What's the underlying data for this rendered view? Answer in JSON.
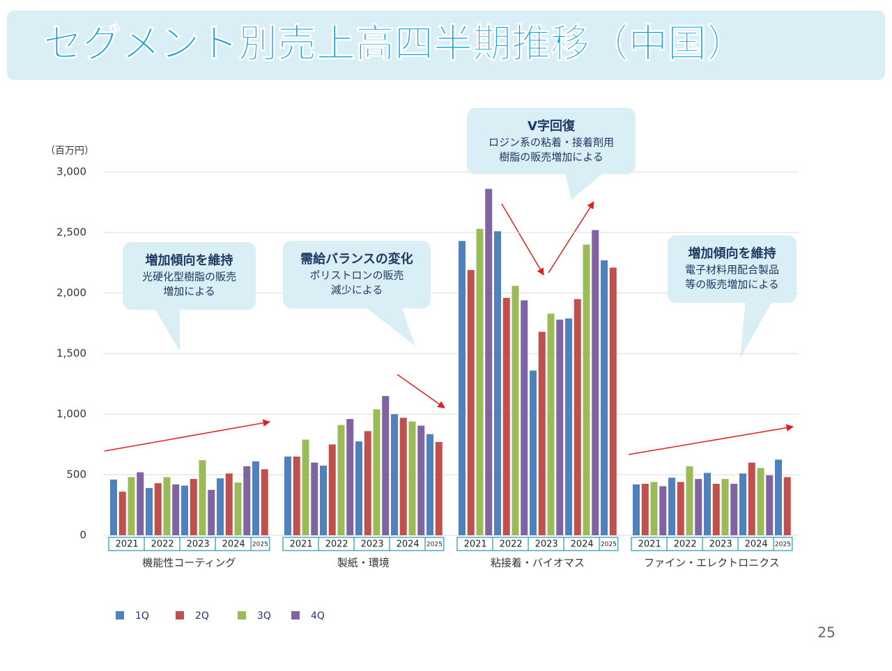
{
  "chart_data": {
    "type": "bar",
    "title": "セグメント別売上高四半期推移（中国）",
    "y_unit": "（百万円）",
    "ylim": [
      0,
      3000
    ],
    "yticks": [
      0,
      500,
      {
        "value": 1000,
        "label": "1,000"
      },
      {
        "value": 1500,
        "label": "1,500"
      },
      {
        "value": 2000,
        "label": "2,000"
      },
      {
        "value": 2500,
        "label": "2,500"
      },
      {
        "value": 3000,
        "label": "3,000"
      }
    ],
    "grid": true,
    "legend": [
      {
        "name": "1Q",
        "color": "#4f81bd"
      },
      {
        "name": "2Q",
        "color": "#c0504d"
      },
      {
        "name": "3Q",
        "color": "#9bbb59"
      },
      {
        "name": "4Q",
        "color": "#8064a2"
      }
    ],
    "years": [
      "2021",
      "2022",
      "2023",
      "2024",
      "2025"
    ],
    "groups": [
      {
        "name": "機能性コーティング",
        "values": [
          460,
          360,
          480,
          520,
          390,
          430,
          480,
          420,
          410,
          465,
          620,
          375,
          470,
          510,
          435,
          570,
          610,
          545
        ]
      },
      {
        "name": "製紙・環境",
        "values": [
          650,
          650,
          790,
          600,
          575,
          750,
          910,
          960,
          775,
          860,
          1040,
          1150,
          1000,
          970,
          940,
          905,
          835,
          770
        ]
      },
      {
        "name": "粘接着・バイオマス",
        "values": [
          2430,
          2190,
          2530,
          2860,
          2510,
          1960,
          2060,
          1940,
          1360,
          1680,
          1830,
          1780,
          1790,
          1950,
          2400,
          2520,
          2270,
          2210
        ]
      },
      {
        "name": "ファイン・エレクトロニクス",
        "values": [
          420,
          425,
          440,
          405,
          475,
          440,
          570,
          465,
          515,
          425,
          465,
          425,
          510,
          600,
          555,
          495,
          625,
          480
        ]
      }
    ],
    "annotations": [
      {
        "title": "増加傾向を維持",
        "lines": [
          "光硬化型樹脂の販売",
          "増加による"
        ]
      },
      {
        "title": "需給バランスの変化",
        "lines": [
          "ポリストロンの販売",
          "減少による"
        ]
      },
      {
        "title": "V字回復",
        "lines": [
          "ロジン系の粘着・接着剤用",
          "樹脂の販売増加による"
        ]
      },
      {
        "title": "増加傾向を維持",
        "lines": [
          "電子材料用配合製品",
          "等の販売増加による"
        ]
      }
    ]
  },
  "page_number": "25"
}
